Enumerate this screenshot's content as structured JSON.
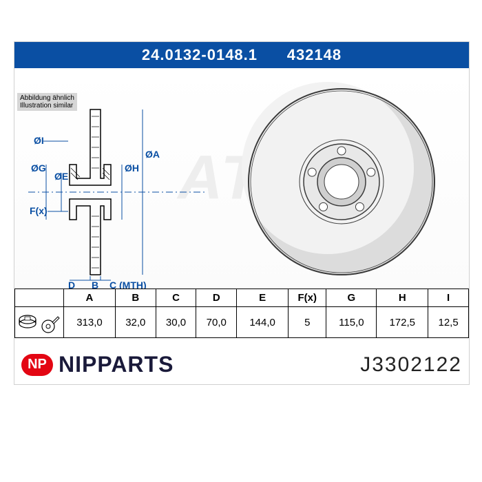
{
  "header": {
    "left_code": "24.0132-0148.1",
    "right_code": "432148"
  },
  "similar_note": {
    "line1": "Abbildung ähnlich",
    "line2": "Illustration similar"
  },
  "watermark": "ATE",
  "cross_section": {
    "labels": [
      "ØI",
      "ØG",
      "ØE",
      "ØH",
      "ØA",
      "F(x)",
      "D",
      "B",
      "C (MTH)"
    ],
    "dim_color": "#0a4fa3"
  },
  "front_view": {
    "outer_r": 135,
    "inner_r": 55,
    "hub_r": 35,
    "bolt_r": 45,
    "bolt_hole_r": 6,
    "bolt_count": 5,
    "fill": "#dcdcdc",
    "stroke": "#3a3a3a"
  },
  "table": {
    "headers": [
      "",
      "A",
      "B",
      "C",
      "D",
      "E",
      "F(x)",
      "G",
      "H",
      "I"
    ],
    "row": [
      "",
      "313,0",
      "32,0",
      "30,0",
      "70,0",
      "144,0",
      "5",
      "115,0",
      "172,5",
      "12,5"
    ],
    "icon_cell_width": 70
  },
  "footer": {
    "badge": "NP",
    "brand": "NIPPARTS",
    "part_number": "J3302122",
    "badge_bg": "#e30613",
    "brand_color": "#1a1a3a"
  }
}
